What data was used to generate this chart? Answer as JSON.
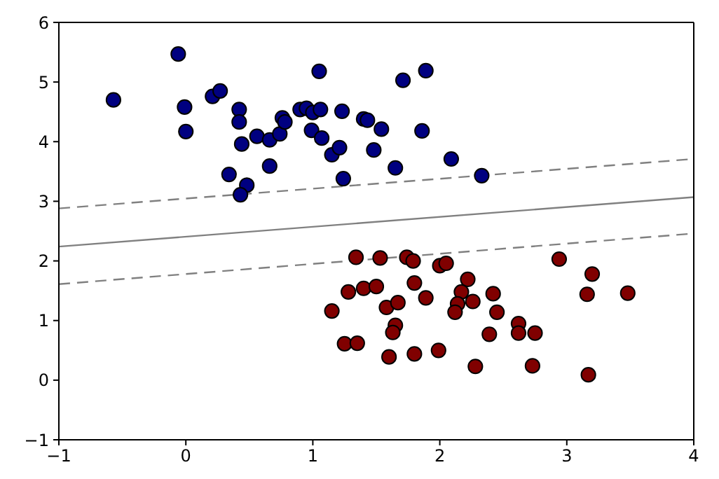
{
  "chart_data": {
    "type": "scatter",
    "marker": "circle",
    "grid": false,
    "xlim": [
      -1,
      4
    ],
    "xticks": [
      -1,
      0,
      1,
      2,
      3,
      4
    ],
    "ylim": [
      -1,
      6
    ],
    "yticks": [
      -1,
      0,
      1,
      2,
      3,
      4,
      5,
      6
    ],
    "series": [
      {
        "color": "#000080",
        "x": [
          -0.57,
          -0.06,
          -0.01,
          0.0,
          0.21,
          0.27,
          0.42,
          0.42,
          0.44,
          0.34,
          0.48,
          0.43,
          0.56,
          0.66,
          0.66,
          0.74,
          0.76,
          0.78,
          0.9,
          0.95,
          1.0,
          1.06,
          1.05,
          0.99,
          1.07,
          1.15,
          1.21,
          1.24,
          1.23,
          1.4,
          1.43,
          1.48,
          1.54,
          1.65,
          1.71,
          1.89,
          1.86,
          2.09,
          2.33
        ],
        "values": [
          4.7,
          5.47,
          4.58,
          4.17,
          4.76,
          4.85,
          4.54,
          4.33,
          3.96,
          3.45,
          3.27,
          3.11,
          4.09,
          4.03,
          3.59,
          4.13,
          4.4,
          4.33,
          4.54,
          4.56,
          4.49,
          4.54,
          5.18,
          4.19,
          4.06,
          3.78,
          3.9,
          3.38,
          4.51,
          4.38,
          4.36,
          3.86,
          4.21,
          3.56,
          5.03,
          5.19,
          4.18,
          3.71,
          3.43
        ]
      },
      {
        "color": "#800000",
        "x": [
          1.34,
          1.53,
          1.74,
          1.79,
          2.0,
          2.05,
          2.94,
          3.2,
          3.16,
          3.48,
          1.28,
          1.4,
          1.5,
          1.15,
          1.58,
          1.67,
          1.8,
          1.89,
          2.22,
          2.17,
          2.14,
          2.12,
          2.26,
          2.42,
          2.45,
          2.62,
          2.62,
          2.75,
          2.39,
          1.65,
          1.63,
          1.25,
          1.35,
          1.6,
          1.8,
          1.99,
          2.28,
          2.73,
          3.17
        ],
        "values": [
          2.06,
          2.05,
          2.06,
          2.0,
          1.92,
          1.96,
          2.03,
          1.78,
          1.44,
          1.46,
          1.48,
          1.54,
          1.57,
          1.16,
          1.22,
          1.3,
          1.63,
          1.38,
          1.69,
          1.48,
          1.28,
          1.14,
          1.32,
          1.45,
          1.14,
          0.95,
          0.79,
          0.79,
          0.77,
          0.92,
          0.8,
          0.61,
          0.62,
          0.39,
          0.44,
          0.5,
          0.23,
          0.24,
          0.09
        ]
      },
      {
        "type": "line",
        "line_style": "solid",
        "marker": "none",
        "color": "#808080",
        "x": [
          -1,
          4
        ],
        "values": [
          2.24,
          3.07
        ]
      },
      {
        "type": "line",
        "line_style": "dashed",
        "marker": "none",
        "color": "#808080",
        "x": [
          -1,
          4
        ],
        "values": [
          2.88,
          3.71
        ]
      },
      {
        "type": "line",
        "line_style": "dashed",
        "marker": "none",
        "color": "#808080",
        "x": [
          -1,
          4
        ],
        "values": [
          1.61,
          2.46
        ]
      }
    ]
  }
}
